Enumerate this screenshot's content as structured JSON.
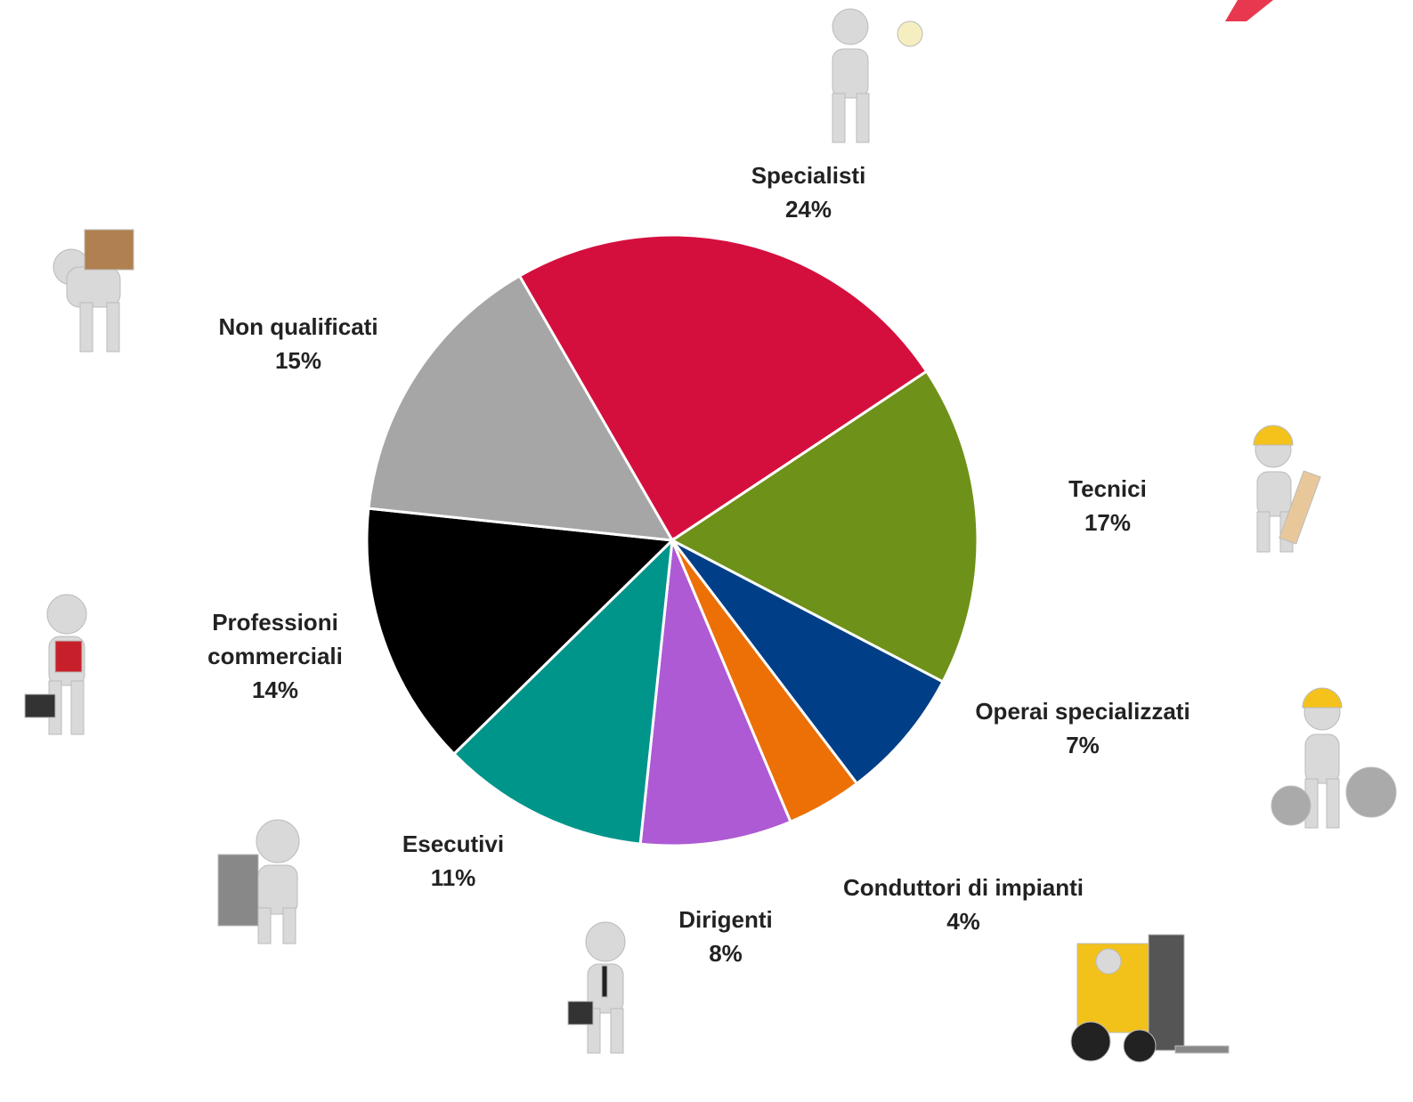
{
  "chart_data": {
    "type": "pie",
    "categories": [
      "Specialisti",
      "Tecnici",
      "Operai specializzati",
      "Conduttori di impianti",
      "Dirigenti",
      "Esecutivi",
      "Professioni commerciali",
      "Non qualificati"
    ],
    "values": [
      24,
      17,
      7,
      4,
      8,
      11,
      14,
      15
    ],
    "value_labels": [
      "24%",
      "17%",
      "7%",
      "4%",
      "8%",
      "11%",
      "14%",
      "15%"
    ],
    "colors": [
      "#d40f3e",
      "#6e9119",
      "#003f87",
      "#ec7006",
      "#ad5ad4",
      "#00958a",
      "#000000",
      "#a6a6a6"
    ]
  }
}
